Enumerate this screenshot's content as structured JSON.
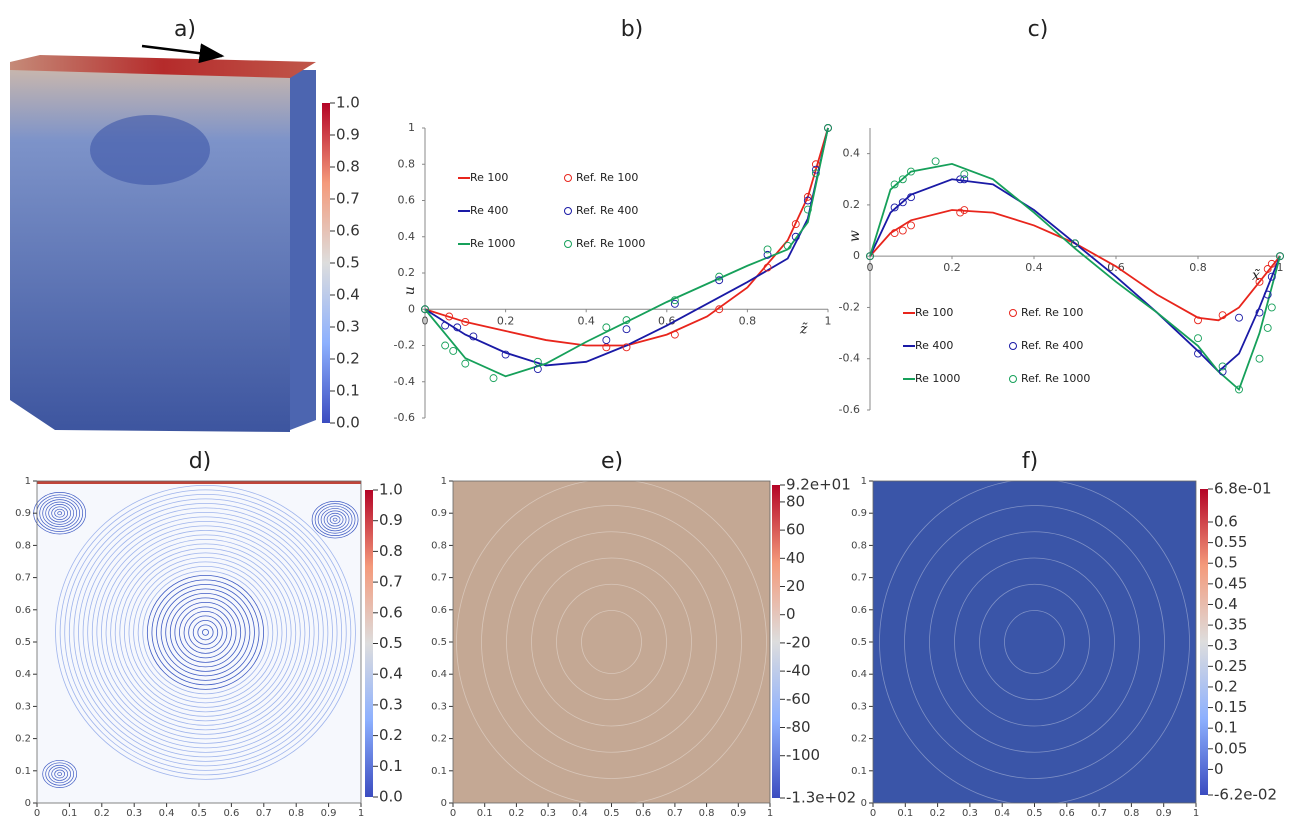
{
  "chart_data": [
    {
      "type": "volume",
      "title": "a)",
      "clim": [
        0,
        1
      ],
      "cticks": [
        {
          "value": 0,
          "label": "0.0"
        },
        0.1,
        0.2,
        0.3,
        0.4,
        0.5,
        0.6,
        0.7,
        0.8,
        0.9,
        {
          "value": 1,
          "label": "1.0"
        }
      ]
    },
    {
      "type": "line",
      "title": "b)",
      "x_label": "z̃",
      "y_label": "u",
      "xlim": [
        0,
        1
      ],
      "xticks": [
        0,
        0.2,
        0.4,
        0.6,
        0.8,
        1
      ],
      "ylim": [
        -0.6,
        1
      ],
      "yticks": [
        -0.6,
        -0.4,
        -0.2,
        0,
        0.2,
        0.4,
        0.6,
        0.8,
        1
      ],
      "legend": "upper left",
      "series": [
        {
          "name": "Re 100",
          "color": "#e8251c",
          "style": "line",
          "x": [
            0,
            0.1,
            0.2,
            0.3,
            0.4,
            0.5,
            0.6,
            0.7,
            0.8,
            0.9,
            0.95,
            1
          ],
          "values": [
            0,
            -0.07,
            -0.12,
            -0.17,
            -0.2,
            -0.2,
            -0.14,
            -0.04,
            0.12,
            0.38,
            0.62,
            1
          ]
        },
        {
          "name": "Re 400",
          "color": "#1a1aa6",
          "style": "line",
          "x": [
            0,
            0.1,
            0.2,
            0.3,
            0.4,
            0.5,
            0.6,
            0.7,
            0.8,
            0.9,
            0.95,
            1
          ],
          "values": [
            0,
            -0.14,
            -0.24,
            -0.31,
            -0.29,
            -0.2,
            -0.09,
            0.03,
            0.15,
            0.28,
            0.5,
            1
          ]
        },
        {
          "name": "Re 1000",
          "color": "#16a05a",
          "style": "line",
          "x": [
            0,
            0.1,
            0.2,
            0.3,
            0.4,
            0.5,
            0.6,
            0.7,
            0.8,
            0.9,
            0.95,
            1
          ],
          "values": [
            0,
            -0.27,
            -0.37,
            -0.3,
            -0.18,
            -0.07,
            0.04,
            0.14,
            0.24,
            0.33,
            0.48,
            1
          ]
        },
        {
          "name": "Ref. Re 100",
          "color": "#e8251c",
          "style": "marker",
          "x": [
            0,
            0.06,
            0.1,
            0.45,
            0.5,
            0.62,
            0.73,
            0.85,
            0.92,
            0.95,
            0.97,
            1
          ],
          "values": [
            0,
            -0.04,
            -0.07,
            -0.21,
            -0.21,
            -0.14,
            0,
            0.23,
            0.47,
            0.62,
            0.8,
            1
          ]
        },
        {
          "name": "Ref. Re 400",
          "color": "#1a1aa6",
          "style": "marker",
          "x": [
            0,
            0.05,
            0.08,
            0.12,
            0.2,
            0.28,
            0.45,
            0.5,
            0.62,
            0.73,
            0.85,
            0.92,
            0.95,
            0.97,
            1
          ],
          "values": [
            0,
            -0.09,
            -0.1,
            -0.15,
            -0.25,
            -0.33,
            -0.17,
            -0.11,
            0.03,
            0.16,
            0.3,
            0.4,
            0.6,
            0.77,
            1
          ]
        },
        {
          "name": "Ref. Re 1000",
          "color": "#16a05a",
          "style": "marker",
          "x": [
            0,
            0.05,
            0.07,
            0.1,
            0.17,
            0.28,
            0.45,
            0.5,
            0.62,
            0.73,
            0.85,
            0.9,
            0.95,
            0.97,
            1
          ],
          "values": [
            0,
            -0.2,
            -0.23,
            -0.3,
            -0.38,
            -0.29,
            -0.1,
            -0.06,
            0.05,
            0.18,
            0.33,
            0.35,
            0.55,
            0.75,
            1
          ]
        }
      ]
    },
    {
      "type": "line",
      "title": "c)",
      "x_label": "x̃",
      "y_label": "w",
      "xlim": [
        0,
        1
      ],
      "xticks": [
        0,
        0.2,
        0.4,
        0.6,
        0.8,
        1
      ],
      "ylim": [
        -0.6,
        0.5
      ],
      "yticks": [
        -0.6,
        -0.4,
        -0.2,
        0,
        0.2,
        0.4
      ],
      "legend": "lower left",
      "series": [
        {
          "name": "Re 100",
          "color": "#e8251c",
          "style": "line",
          "x": [
            0,
            0.05,
            0.1,
            0.2,
            0.3,
            0.4,
            0.5,
            0.6,
            0.7,
            0.8,
            0.85,
            0.9,
            0.95,
            1
          ],
          "values": [
            0,
            0.09,
            0.14,
            0.18,
            0.17,
            0.12,
            0.05,
            -0.04,
            -0.15,
            -0.24,
            -0.25,
            -0.2,
            -0.1,
            0
          ]
        },
        {
          "name": "Re 400",
          "color": "#1a1aa6",
          "style": "line",
          "x": [
            0,
            0.05,
            0.1,
            0.2,
            0.3,
            0.4,
            0.5,
            0.6,
            0.7,
            0.8,
            0.85,
            0.9,
            0.95,
            1
          ],
          "values": [
            0,
            0.17,
            0.24,
            0.3,
            0.28,
            0.18,
            0.05,
            -0.08,
            -0.22,
            -0.37,
            -0.45,
            -0.38,
            -0.2,
            0
          ]
        },
        {
          "name": "Re 1000",
          "color": "#16a05a",
          "style": "line",
          "x": [
            0,
            0.05,
            0.1,
            0.2,
            0.3,
            0.4,
            0.5,
            0.6,
            0.7,
            0.8,
            0.85,
            0.9,
            0.95,
            1
          ],
          "values": [
            0,
            0.26,
            0.33,
            0.36,
            0.3,
            0.17,
            0.03,
            -0.1,
            -0.22,
            -0.35,
            -0.45,
            -0.52,
            -0.3,
            0
          ]
        },
        {
          "name": "Ref. Re 100",
          "color": "#e8251c",
          "style": "marker",
          "x": [
            0,
            0.06,
            0.08,
            0.1,
            0.22,
            0.23,
            0.5,
            0.8,
            0.86,
            0.95,
            0.97,
            0.98,
            1
          ],
          "values": [
            0,
            0.09,
            0.1,
            0.12,
            0.17,
            0.18,
            0.05,
            -0.25,
            -0.23,
            -0.1,
            -0.05,
            -0.03,
            0
          ]
        },
        {
          "name": "Ref. Re 400",
          "color": "#1a1aa6",
          "style": "marker",
          "x": [
            0,
            0.06,
            0.08,
            0.1,
            0.22,
            0.23,
            0.5,
            0.8,
            0.86,
            0.9,
            0.95,
            0.97,
            0.98,
            1
          ],
          "values": [
            0,
            0.19,
            0.21,
            0.23,
            0.3,
            0.3,
            0.05,
            -0.38,
            -0.45,
            -0.24,
            -0.22,
            -0.15,
            -0.08,
            0
          ]
        },
        {
          "name": "Ref. Re 1000",
          "color": "#16a05a",
          "style": "marker",
          "x": [
            0,
            0.06,
            0.08,
            0.1,
            0.16,
            0.23,
            0.5,
            0.8,
            0.86,
            0.9,
            0.95,
            0.97,
            0.98,
            1
          ],
          "values": [
            0,
            0.28,
            0.3,
            0.33,
            0.37,
            0.32,
            0.05,
            -0.32,
            -0.43,
            -0.52,
            -0.4,
            -0.28,
            -0.2,
            0
          ]
        }
      ]
    },
    {
      "type": "streamlines",
      "title": "d)",
      "xlim": [
        0,
        1
      ],
      "xticks": [
        0,
        0.1,
        0.2,
        0.3,
        0.4,
        0.5,
        0.6,
        0.7,
        0.8,
        0.9,
        1
      ],
      "ylim": [
        0,
        1
      ],
      "yticks": [
        0,
        0.1,
        0.2,
        0.3,
        0.4,
        0.5,
        0.6,
        0.7,
        0.8,
        0.9,
        1
      ],
      "clim": [
        0,
        1
      ],
      "cticks": [
        {
          "value": 0,
          "label": "0.0"
        },
        0.1,
        0.2,
        0.3,
        0.4,
        0.5,
        0.6,
        0.7,
        0.8,
        0.9,
        {
          "value": 1,
          "label": "1.0"
        }
      ]
    },
    {
      "type": "contour",
      "title": "e)",
      "xlim": [
        0,
        1
      ],
      "xticks": [
        0,
        0.1,
        0.2,
        0.3,
        0.4,
        0.5,
        0.6,
        0.7,
        0.8,
        0.9,
        1
      ],
      "ylim": [
        0,
        1
      ],
      "yticks": [
        0,
        0.1,
        0.2,
        0.3,
        0.4,
        0.5,
        0.6,
        0.7,
        0.8,
        0.9,
        1
      ],
      "clim": [
        -130,
        92
      ],
      "cticks": [
        {
          "value": -130,
          "label": "-1.3e+02"
        },
        -100,
        -80,
        -60,
        -40,
        -20,
        0,
        20,
        40,
        60,
        80,
        {
          "value": 92,
          "label": "9.2e+01"
        }
      ],
      "fill": "#c4a894"
    },
    {
      "type": "contour",
      "title": "f)",
      "xlim": [
        0,
        1
      ],
      "xticks": [
        0,
        0.1,
        0.2,
        0.3,
        0.4,
        0.5,
        0.6,
        0.7,
        0.8,
        0.9,
        1
      ],
      "ylim": [
        0,
        1
      ],
      "yticks": [
        0,
        0.1,
        0.2,
        0.3,
        0.4,
        0.5,
        0.6,
        0.7,
        0.8,
        0.9,
        1
      ],
      "clim": [
        -0.062,
        0.68
      ],
      "cticks": [
        {
          "value": -0.062,
          "label": "-6.2e-02"
        },
        0,
        0.05,
        0.1,
        0.15,
        0.2,
        0.25,
        0.3,
        0.35,
        0.4,
        0.45,
        0.5,
        0.55,
        0.6,
        {
          "value": 0.68,
          "label": "6.8e-01"
        }
      ],
      "fill": "#3a55a8"
    }
  ]
}
